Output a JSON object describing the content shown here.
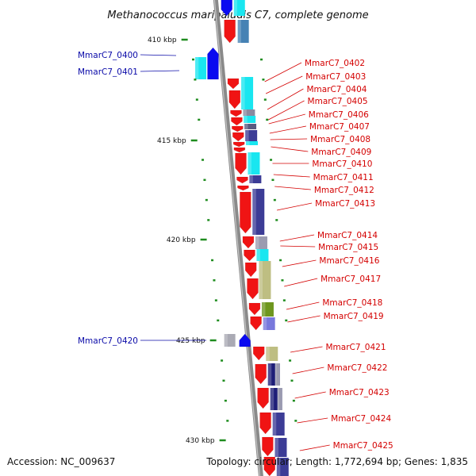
{
  "title": "Methanococcus maripaludis C7, complete genome",
  "accession_label": "Accession: NC_009637",
  "topology_label": "Topology: circular; Length: 1,772,694 bp; Genes: 1,835",
  "ticks": [
    "410 kbp",
    "415 kbp",
    "420 kbp",
    "425 kbp",
    "430 kbp"
  ],
  "colors": {
    "backbone": "#8a8a8a",
    "reverse_gene": "#0a0af0",
    "forward_gene": "#f01414",
    "tick_mark": "#1e8c1e",
    "cyan": "#19e6f0",
    "steel": "#4682b4",
    "navy": "#3c3c96",
    "grey": "#9b9bb0",
    "khaki": "#bebe82",
    "olive": "#6e961e",
    "lavender": "#7878dc"
  },
  "left_labels": [
    "MmarC7_0400",
    "MmarC7_0401",
    "MmarC7_0420"
  ],
  "right_labels": [
    "MmarC7_0402",
    "MmarC7_0403",
    "MmarC7_0404",
    "MmarC7_0405",
    "MmarC7_0406",
    "MmarC7_0407",
    "MmarC7_0408",
    "MmarC7_0409",
    "MmarC7_0410",
    "MmarC7_0411",
    "MmarC7_0412",
    "MmarC7_0413",
    "MmarC7_0414",
    "MmarC7_0415",
    "MmarC7_0416",
    "MmarC7_0417",
    "MmarC7_0418",
    "MmarC7_0419",
    "MmarC7_0421",
    "MmarC7_0422",
    "MmarC7_0423",
    "MmarC7_0424",
    "MmarC7_0425"
  ]
}
